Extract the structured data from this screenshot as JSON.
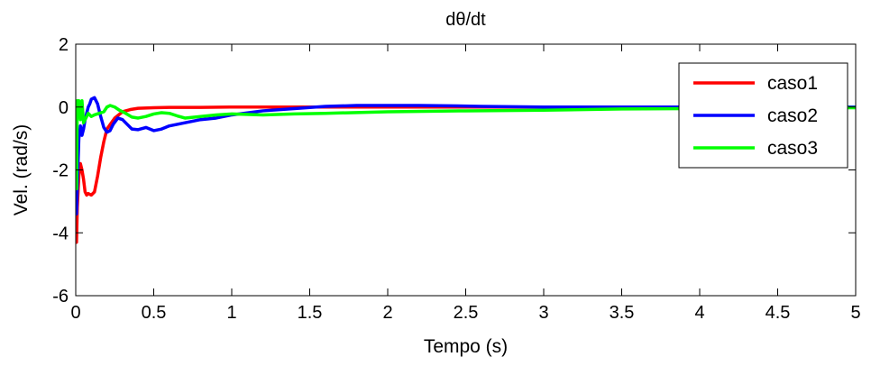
{
  "chart_data": {
    "type": "line",
    "title": "dθ/dt",
    "xlabel": "Tempo (s)",
    "ylabel": "Vel. (rad/s)",
    "xlim": [
      0,
      5
    ],
    "ylim": [
      -6,
      2
    ],
    "xticks": [
      0,
      0.5,
      1,
      1.5,
      2,
      2.5,
      3,
      3.5,
      4,
      4.5,
      5
    ],
    "xtick_labels": [
      "0",
      "0.5",
      "1",
      "1.5",
      "2",
      "2.5",
      "3",
      "3.5",
      "4",
      "4.5",
      "5"
    ],
    "yticks": [
      -6,
      -4,
      -2,
      0,
      2
    ],
    "ytick_labels": [
      "-6",
      "-4",
      "-2",
      "0",
      "2"
    ],
    "grid": false,
    "legend_position": "top-right",
    "series": [
      {
        "name": "caso1",
        "color": "#ff0000",
        "x": [
          0,
          0.005,
          0.01,
          0.02,
          0.03,
          0.04,
          0.05,
          0.06,
          0.07,
          0.08,
          0.1,
          0.12,
          0.14,
          0.16,
          0.18,
          0.2,
          0.25,
          0.3,
          0.35,
          0.4,
          0.5,
          0.6,
          0.8,
          1.0,
          1.5,
          2.0,
          2.5,
          3.0,
          4.0,
          5.0
        ],
        "y": [
          -0.1,
          -4.3,
          -3.2,
          -2.2,
          -1.8,
          -2.0,
          -2.3,
          -2.7,
          -2.8,
          -2.75,
          -2.8,
          -2.7,
          -2.2,
          -1.6,
          -1.1,
          -0.7,
          -0.35,
          -0.15,
          -0.08,
          -0.04,
          -0.02,
          -0.01,
          -0.01,
          0.0,
          0.0,
          0.0,
          0.0,
          0.0,
          0.0,
          0.0
        ]
      },
      {
        "name": "caso2",
        "color": "#0000ff",
        "x": [
          0,
          0.005,
          0.01,
          0.02,
          0.03,
          0.04,
          0.05,
          0.06,
          0.07,
          0.08,
          0.09,
          0.1,
          0.12,
          0.14,
          0.16,
          0.18,
          0.2,
          0.22,
          0.24,
          0.27,
          0.3,
          0.33,
          0.36,
          0.4,
          0.45,
          0.5,
          0.55,
          0.6,
          0.65,
          0.7,
          0.8,
          0.9,
          1.0,
          1.2,
          1.4,
          1.6,
          1.8,
          2.0,
          2.2,
          2.4,
          2.6,
          3.0,
          3.5,
          4.0,
          5.0
        ],
        "y": [
          -0.1,
          -3.4,
          -2.5,
          -1.0,
          -0.6,
          -0.9,
          -0.7,
          -0.4,
          -0.2,
          0.0,
          0.1,
          0.25,
          0.3,
          0.1,
          -0.3,
          -0.65,
          -0.8,
          -0.75,
          -0.55,
          -0.35,
          -0.4,
          -0.55,
          -0.7,
          -0.72,
          -0.65,
          -0.75,
          -0.7,
          -0.6,
          -0.55,
          -0.5,
          -0.4,
          -0.35,
          -0.25,
          -0.12,
          -0.05,
          0.02,
          0.05,
          0.05,
          0.05,
          0.04,
          0.02,
          0.0,
          0.0,
          0.0,
          0.0
        ]
      },
      {
        "name": "caso3",
        "color": "#00ff00",
        "x": [
          0,
          0.005,
          0.01,
          0.015,
          0.02,
          0.03,
          0.04,
          0.05,
          0.06,
          0.08,
          0.1,
          0.12,
          0.15,
          0.18,
          0.2,
          0.22,
          0.25,
          0.28,
          0.32,
          0.36,
          0.4,
          0.45,
          0.5,
          0.55,
          0.6,
          0.65,
          0.7,
          0.8,
          0.9,
          1.0,
          1.2,
          1.4,
          1.6,
          2.0,
          2.5,
          3.0,
          3.5,
          4.0,
          4.5,
          5.0
        ],
        "y": [
          0.0,
          -2.6,
          0.2,
          -0.3,
          0.2,
          -0.4,
          0.2,
          -0.5,
          -0.4,
          -0.2,
          -0.3,
          -0.25,
          -0.2,
          -0.15,
          0.0,
          0.05,
          0.0,
          -0.1,
          -0.2,
          -0.32,
          -0.35,
          -0.3,
          -0.22,
          -0.18,
          -0.2,
          -0.28,
          -0.35,
          -0.3,
          -0.25,
          -0.22,
          -0.25,
          -0.22,
          -0.2,
          -0.15,
          -0.12,
          -0.1,
          -0.06,
          -0.05,
          -0.03,
          -0.02
        ]
      }
    ]
  }
}
